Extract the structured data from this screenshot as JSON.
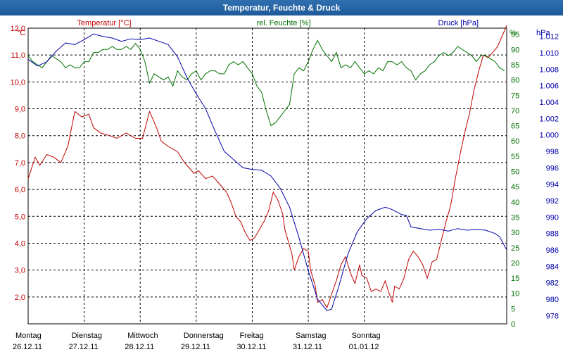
{
  "window": {
    "title": "Temperatur, Feuchte & Druck"
  },
  "chart_data": {
    "type": "line",
    "title": "Temperatur, Feuchte & Druck",
    "legend": "top, inline above plot",
    "grid": true,
    "x": {
      "range": [
        "26.12.11 00:00",
        "02.01.12 04:00"
      ],
      "ticks": [
        {
          "day": "Montag",
          "date": "26.12.11"
        },
        {
          "day": "Dienstag",
          "date": "27.12.11"
        },
        {
          "day": "Mittwoch",
          "date": "28.12.11"
        },
        {
          "day": "Donnerstag",
          "date": "29.12.11"
        },
        {
          "day": "Freitag",
          "date": "30.12.11"
        },
        {
          "day": "Samstag",
          "date": "31.12.11"
        },
        {
          "day": "Sonntag",
          "date": "01.01.12"
        }
      ]
    },
    "axes": {
      "temperature": {
        "unit": "°C",
        "range": [
          1.0,
          12.0
        ],
        "ticks": [
          "2,0",
          "3,0",
          "4,0",
          "5,0",
          "6,0",
          "7,0",
          "8,0",
          "9,0",
          "10,0",
          "11,0",
          "12,0"
        ]
      },
      "humidity": {
        "unit": "%",
        "range": [
          0,
          97
        ],
        "ticks": [
          "0",
          "5",
          "10",
          "15",
          "20",
          "25",
          "30",
          "35",
          "40",
          "45",
          "50",
          "55",
          "60",
          "65",
          "70",
          "75",
          "80",
          "85",
          "90",
          "95"
        ]
      },
      "pressure": {
        "unit": "hPa",
        "range": [
          977,
          1013
        ],
        "ticks": [
          "978",
          "980",
          "982",
          "984",
          "986",
          "988",
          "990",
          "992",
          "994",
          "996",
          "998",
          "1.000",
          "1.002",
          "1.004",
          "1.006",
          "1.008",
          "1.010",
          "1.012"
        ]
      }
    },
    "series": [
      {
        "name": "Temperatur [°C]",
        "axis": "temperature",
        "color": "#c00000",
        "points": [
          [
            0,
            6.4
          ],
          [
            3,
            7.2
          ],
          [
            5,
            6.9
          ],
          [
            8,
            7.3
          ],
          [
            11,
            7.2
          ],
          [
            14,
            7.0
          ],
          [
            17,
            7.6
          ],
          [
            20,
            8.9
          ],
          [
            23,
            8.7
          ],
          [
            26,
            8.8
          ],
          [
            28,
            8.3
          ],
          [
            31,
            8.1
          ],
          [
            35,
            8.0
          ],
          [
            38,
            7.9
          ],
          [
            42,
            8.1
          ],
          [
            46,
            7.9
          ],
          [
            49,
            7.9
          ],
          [
            52,
            8.9
          ],
          [
            55,
            8.3
          ],
          [
            57,
            7.8
          ],
          [
            60,
            7.6
          ],
          [
            64,
            7.4
          ],
          [
            67,
            7.0
          ],
          [
            69,
            6.8
          ],
          [
            71,
            6.6
          ],
          [
            73,
            6.7
          ],
          [
            76,
            6.4
          ],
          [
            79,
            6.5
          ],
          [
            82,
            6.2
          ],
          [
            85,
            5.9
          ],
          [
            87,
            5.5
          ],
          [
            89,
            5.0
          ],
          [
            91,
            4.8
          ],
          [
            93,
            4.4
          ],
          [
            95,
            4.1
          ],
          [
            97,
            4.2
          ],
          [
            99,
            4.5
          ],
          [
            101,
            4.8
          ],
          [
            103,
            5.2
          ],
          [
            105,
            5.9
          ],
          [
            107,
            5.6
          ],
          [
            109,
            5.1
          ],
          [
            110,
            4.5
          ],
          [
            111,
            4.2
          ],
          [
            113,
            3.6
          ],
          [
            114,
            3.0
          ],
          [
            116,
            3.5
          ],
          [
            118,
            3.8
          ],
          [
            120,
            3.7
          ],
          [
            121,
            3.0
          ],
          [
            123,
            2.4
          ],
          [
            124,
            1.8
          ],
          [
            126,
            1.9
          ],
          [
            128,
            1.6
          ],
          [
            130,
            2.1
          ],
          [
            132,
            2.6
          ],
          [
            134,
            3.2
          ],
          [
            136,
            3.5
          ],
          [
            138,
            2.9
          ],
          [
            140,
            2.5
          ],
          [
            142,
            3.2
          ],
          [
            143,
            2.8
          ],
          [
            145,
            2.7
          ],
          [
            147,
            2.2
          ],
          [
            149,
            2.3
          ],
          [
            151,
            2.2
          ],
          [
            153,
            2.6
          ],
          [
            154,
            2.3
          ],
          [
            156,
            1.8
          ],
          [
            157,
            2.4
          ],
          [
            159,
            2.3
          ],
          [
            161,
            2.7
          ],
          [
            163,
            3.4
          ],
          [
            165,
            3.7
          ],
          [
            167,
            3.5
          ],
          [
            169,
            3.2
          ],
          [
            171,
            2.7
          ],
          [
            173,
            3.3
          ],
          [
            175,
            3.4
          ],
          [
            177,
            4.1
          ],
          [
            179,
            4.8
          ],
          [
            181,
            5.4
          ],
          [
            183,
            6.4
          ],
          [
            185,
            7.3
          ],
          [
            187,
            8.1
          ],
          [
            189,
            8.8
          ],
          [
            191,
            9.7
          ],
          [
            193,
            10.4
          ],
          [
            195,
            11.0
          ],
          [
            197,
            10.9
          ],
          [
            199,
            11.1
          ],
          [
            201,
            11.3
          ],
          [
            203,
            11.7
          ],
          [
            205,
            12.1
          ]
        ]
      },
      {
        "name": "rel. Feuchte [%]",
        "axis": "humidity",
        "color": "#007000",
        "points": [
          [
            0,
            88
          ],
          [
            2,
            86
          ],
          [
            4,
            85
          ],
          [
            6,
            84
          ],
          [
            8,
            86
          ],
          [
            10,
            88
          ],
          [
            12,
            87
          ],
          [
            14,
            86
          ],
          [
            16,
            84
          ],
          [
            18,
            85
          ],
          [
            20,
            84
          ],
          [
            22,
            84
          ],
          [
            24,
            86
          ],
          [
            26,
            86
          ],
          [
            28,
            89
          ],
          [
            30,
            89
          ],
          [
            32,
            90
          ],
          [
            34,
            90
          ],
          [
            36,
            91
          ],
          [
            38,
            90
          ],
          [
            40,
            90
          ],
          [
            42,
            91
          ],
          [
            44,
            90
          ],
          [
            46,
            92
          ],
          [
            48,
            90
          ],
          [
            50,
            86
          ],
          [
            52,
            79
          ],
          [
            54,
            82
          ],
          [
            56,
            81
          ],
          [
            58,
            80
          ],
          [
            60,
            81
          ],
          [
            62,
            78
          ],
          [
            64,
            83
          ],
          [
            66,
            81
          ],
          [
            68,
            80
          ],
          [
            70,
            82
          ],
          [
            72,
            83
          ],
          [
            74,
            80
          ],
          [
            76,
            82
          ],
          [
            78,
            83
          ],
          [
            80,
            83
          ],
          [
            82,
            82
          ],
          [
            84,
            82
          ],
          [
            86,
            85
          ],
          [
            88,
            86
          ],
          [
            90,
            85
          ],
          [
            92,
            86
          ],
          [
            94,
            84
          ],
          [
            96,
            82
          ],
          [
            98,
            78
          ],
          [
            100,
            76
          ],
          [
            102,
            70
          ],
          [
            104,
            65
          ],
          [
            106,
            66
          ],
          [
            108,
            68
          ],
          [
            110,
            70
          ],
          [
            112,
            72
          ],
          [
            114,
            82
          ],
          [
            116,
            84
          ],
          [
            118,
            83
          ],
          [
            120,
            86
          ],
          [
            122,
            90
          ],
          [
            124,
            93
          ],
          [
            126,
            90
          ],
          [
            128,
            88
          ],
          [
            130,
            86
          ],
          [
            132,
            89
          ],
          [
            134,
            84
          ],
          [
            136,
            85
          ],
          [
            138,
            84
          ],
          [
            140,
            86
          ],
          [
            142,
            84
          ],
          [
            144,
            82
          ],
          [
            146,
            83
          ],
          [
            148,
            82
          ],
          [
            150,
            84
          ],
          [
            152,
            83
          ],
          [
            154,
            86
          ],
          [
            156,
            86
          ],
          [
            158,
            85
          ],
          [
            160,
            86
          ],
          [
            162,
            84
          ],
          [
            164,
            83
          ],
          [
            166,
            80
          ],
          [
            168,
            82
          ],
          [
            170,
            83
          ],
          [
            172,
            85
          ],
          [
            174,
            86
          ],
          [
            176,
            88
          ],
          [
            178,
            89
          ],
          [
            180,
            88
          ],
          [
            182,
            89
          ],
          [
            184,
            91
          ],
          [
            186,
            90
          ],
          [
            188,
            89
          ],
          [
            190,
            88
          ],
          [
            192,
            86
          ],
          [
            194,
            88
          ],
          [
            196,
            88
          ],
          [
            198,
            87
          ],
          [
            200,
            86
          ],
          [
            202,
            84
          ],
          [
            204,
            83
          ]
        ]
      },
      {
        "name": "Druck [hPa]",
        "axis": "pressure",
        "color": "#0000aa",
        "points": [
          [
            0,
            1009.2
          ],
          [
            4,
            1008.4
          ],
          [
            8,
            1008.9
          ],
          [
            12,
            1010.2
          ],
          [
            16,
            1011.2
          ],
          [
            20,
            1011.0
          ],
          [
            24,
            1011.6
          ],
          [
            28,
            1012.3
          ],
          [
            32,
            1012.0
          ],
          [
            36,
            1011.8
          ],
          [
            40,
            1011.4
          ],
          [
            44,
            1011.7
          ],
          [
            48,
            1011.6
          ],
          [
            52,
            1011.8
          ],
          [
            56,
            1011.4
          ],
          [
            60,
            1011.0
          ],
          [
            64,
            1009.5
          ],
          [
            68,
            1007.0
          ],
          [
            72,
            1005.0
          ],
          [
            76,
            1003.2
          ],
          [
            80,
            1000.5
          ],
          [
            84,
            998.0
          ],
          [
            88,
            997.0
          ],
          [
            92,
            996.0
          ],
          [
            96,
            995.8
          ],
          [
            100,
            995.7
          ],
          [
            104,
            995.0
          ],
          [
            108,
            993.5
          ],
          [
            112,
            991.2
          ],
          [
            116,
            987.5
          ],
          [
            120,
            983.5
          ],
          [
            124,
            980.0
          ],
          [
            128,
            978.6
          ],
          [
            130,
            978.8
          ],
          [
            133,
            981.5
          ],
          [
            137,
            985.5
          ],
          [
            141,
            988.2
          ],
          [
            145,
            989.8
          ],
          [
            149,
            990.8
          ],
          [
            153,
            991.2
          ],
          [
            156,
            990.9
          ],
          [
            160,
            990.3
          ],
          [
            162,
            990.2
          ],
          [
            164,
            988.8
          ],
          [
            168,
            988.6
          ],
          [
            172,
            988.4
          ],
          [
            176,
            988.5
          ],
          [
            180,
            988.3
          ],
          [
            184,
            988.6
          ],
          [
            188,
            988.4
          ],
          [
            192,
            988.5
          ],
          [
            196,
            988.4
          ],
          [
            200,
            988.0
          ],
          [
            202,
            987.6
          ],
          [
            205,
            986.0
          ]
        ]
      }
    ]
  }
}
